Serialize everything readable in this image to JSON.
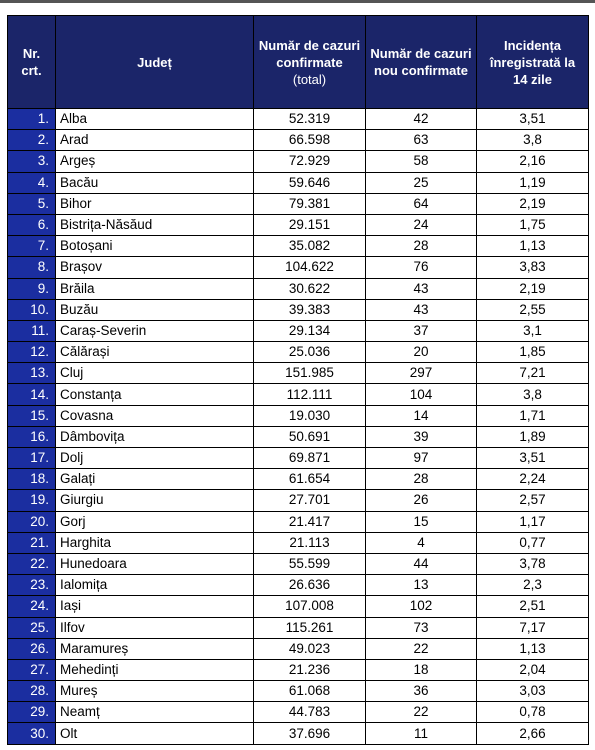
{
  "table": {
    "header": [
      "Nr. crt.",
      "Județ",
      "Număr de cazuri confirmate",
      "Număr de cazuri nou confirmate",
      "Incidența înregistrată la 14 zile"
    ],
    "header_note": "(total)",
    "rows": [
      [
        "1.",
        "Alba",
        "52.319",
        "42",
        "3,51"
      ],
      [
        "2.",
        "Arad",
        "66.598",
        "63",
        "3,8"
      ],
      [
        "3.",
        "Argeș",
        "72.929",
        "58",
        "2,16"
      ],
      [
        "4.",
        "Bacău",
        "59.646",
        "25",
        "1,19"
      ],
      [
        "5.",
        "Bihor",
        "79.381",
        "64",
        "2,19"
      ],
      [
        "6.",
        "Bistrița-Năsăud",
        "29.151",
        "24",
        "1,75"
      ],
      [
        "7.",
        "Botoșani",
        "35.082",
        "28",
        "1,13"
      ],
      [
        "8.",
        "Brașov",
        "104.622",
        "76",
        "3,83"
      ],
      [
        "9.",
        "Brăila",
        "30.622",
        "43",
        "2,19"
      ],
      [
        "10.",
        "Buzău",
        "39.383",
        "43",
        "2,55"
      ],
      [
        "11.",
        "Caraș-Severin",
        "29.134",
        "37",
        "3,1"
      ],
      [
        "12.",
        "Călărași",
        "25.036",
        "20",
        "1,85"
      ],
      [
        "13.",
        "Cluj",
        "151.985",
        "297",
        "7,21"
      ],
      [
        "14.",
        "Constanța",
        "112.111",
        "104",
        "3,8"
      ],
      [
        "15.",
        "Covasna",
        "19.030",
        "14",
        "1,71"
      ],
      [
        "16.",
        "Dâmbovița",
        "50.691",
        "39",
        "1,89"
      ],
      [
        "17.",
        "Dolj",
        "69.871",
        "97",
        "3,51"
      ],
      [
        "18.",
        "Galați",
        "61.654",
        "28",
        "2,24"
      ],
      [
        "19.",
        "Giurgiu",
        "27.701",
        "26",
        "2,57"
      ],
      [
        "20.",
        "Gorj",
        "21.417",
        "15",
        "1,17"
      ],
      [
        "21.",
        "Harghita",
        "21.113",
        "4",
        "0,77"
      ],
      [
        "22.",
        "Hunedoara",
        "55.599",
        "44",
        "3,78"
      ],
      [
        "23.",
        "Ialomița",
        "26.636",
        "13",
        "2,3"
      ],
      [
        "24.",
        "Iași",
        "107.008",
        "102",
        "2,51"
      ],
      [
        "25.",
        "Ilfov",
        "115.261",
        "73",
        "7,17"
      ],
      [
        "26.",
        "Maramureș",
        "49.023",
        "22",
        "1,13"
      ],
      [
        "27.",
        "Mehedinți",
        "21.236",
        "18",
        "2,04"
      ],
      [
        "28.",
        "Mureș",
        "61.068",
        "36",
        "3,03"
      ],
      [
        "29.",
        "Neamț",
        "44.783",
        "22",
        "0,78"
      ],
      [
        "30.",
        "Olt",
        "37.696",
        "11",
        "2,66"
      ]
    ]
  }
}
